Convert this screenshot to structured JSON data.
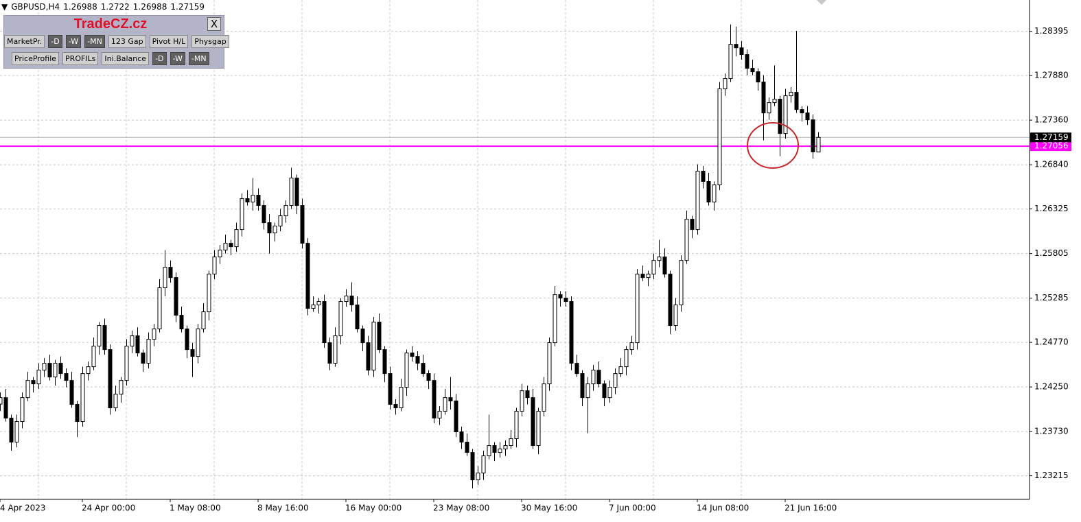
{
  "chart_data": {
    "type": "candlestick",
    "symbol": "GBPUSD,H4",
    "categories": [
      "4 Apr 2023",
      null,
      null,
      null,
      null,
      null,
      null,
      null,
      null,
      null,
      null,
      null,
      null,
      null,
      null,
      "24 Apr 00:00",
      null,
      null,
      null,
      null,
      null,
      null,
      null,
      null,
      null,
      null,
      null,
      null,
      null,
      null,
      null,
      "1 May 08:00",
      null,
      null,
      null,
      null,
      null,
      null,
      null,
      null,
      null,
      null,
      null,
      null,
      null,
      null,
      null,
      "8 May 16:00",
      null,
      null,
      null,
      null,
      null,
      null,
      null,
      null,
      null,
      null,
      null,
      null,
      null,
      null,
      null,
      "16 May 00:00",
      null,
      null,
      null,
      null,
      null,
      null,
      null,
      null,
      null,
      null,
      null,
      null,
      null,
      null,
      null,
      "23 May 08:00",
      null,
      null,
      null,
      null,
      null,
      null,
      null,
      null,
      null,
      null,
      null,
      null,
      null,
      null,
      null,
      "30 May 16:00",
      null,
      null,
      null,
      null,
      null,
      null,
      null,
      null,
      null,
      null,
      null,
      null,
      null,
      null,
      null,
      "7 Jun 00:00",
      null,
      null,
      null,
      null,
      null,
      null,
      null,
      null,
      null,
      null,
      null,
      null,
      null,
      null,
      null,
      "14 Jun 08:00",
      null,
      null,
      null,
      null,
      null,
      null,
      null,
      null,
      null,
      null,
      null,
      null,
      null,
      null,
      null,
      "21 Jun 16:00",
      null,
      null,
      null,
      null,
      null,
      null
    ],
    "open": [
      1.2405,
      1.24126,
      1.23887,
      1.23607,
      1.23847,
      1.24126,
      1.24326,
      1.24286,
      1.24446,
      1.24526,
      1.24366,
      1.24526,
      1.24406,
      1.24326,
      1.24047,
      1.23847,
      1.24406,
      1.24486,
      1.24726,
      1.24966,
      1.24686,
      1.24007,
      1.24166,
      1.24326,
      1.24726,
      1.24846,
      1.24646,
      1.24526,
      1.24806,
      1.24926,
      1.25406,
      1.25645,
      1.25525,
      1.25086,
      1.24926,
      1.24686,
      1.24606,
      1.24926,
      1.25126,
      1.25565,
      1.25765,
      1.25845,
      1.25925,
      1.25885,
      1.26085,
      1.26445,
      1.26405,
      1.26485,
      1.26365,
      1.26165,
      1.26045,
      1.26125,
      1.26245,
      1.26365,
      1.26685,
      1.26365,
      1.25925,
      1.25166,
      1.25206,
      1.25246,
      1.24766,
      1.24526,
      1.24846,
      1.25246,
      1.2531,
      1.25206,
      1.24926,
      1.24766,
      1.24446,
      1.25006,
      1.24686,
      1.24406,
      1.24047,
      1.24007,
      1.24246,
      1.24646,
      1.24606,
      1.24526,
      1.24406,
      1.24326,
      1.23887,
      1.23967,
      1.24126,
      1.24087,
      1.23727,
      1.23607,
      1.23487,
      1.23167,
      1.23247,
      1.23447,
      1.23567,
      1.23487,
      1.23527,
      1.23567,
      1.23647,
      1.23967,
      1.24206,
      1.24126,
      1.23567,
      1.23967,
      1.24286,
      1.24766,
      1.25326,
      1.25286,
      1.25246,
      1.24526,
      1.24406,
      1.24126,
      1.24286,
      1.24446,
      1.24286,
      1.24126,
      1.24246,
      1.24406,
      1.24486,
      1.24686,
      1.24766,
      1.25565,
      1.25525,
      1.25565,
      1.25725,
      1.25765,
      1.25565,
      1.24966,
      1.25206,
      1.25725,
      1.26205,
      1.26085,
      1.26765,
      1.26645,
      1.26405,
      1.26605,
      1.27724,
      1.27844,
      1.28243,
      1.28203,
      1.28124,
      1.27964,
      1.27924,
      1.27804,
      1.27444,
      1.27564,
      1.27604,
      1.27204,
      1.27644,
      1.27684,
      1.27484,
      1.27444,
      1.27364,
      1.26988
    ],
    "high": [
      1.24186,
      1.24226,
      1.23927,
      1.23927,
      1.24186,
      1.24426,
      1.24366,
      1.24526,
      1.24586,
      1.24626,
      1.24566,
      1.24606,
      1.24466,
      1.24426,
      1.24087,
      1.24486,
      1.24546,
      1.24826,
      1.25006,
      1.25046,
      1.24746,
      1.24266,
      1.24366,
      1.24806,
      1.24906,
      1.24946,
      1.24686,
      1.24886,
      1.24986,
      1.25506,
      1.25845,
      1.25725,
      1.25585,
      1.25186,
      1.24966,
      1.24766,
      1.24986,
      1.25226,
      1.25605,
      1.25845,
      1.25905,
      1.26025,
      1.25965,
      1.26165,
      1.26505,
      1.26545,
      1.26685,
      1.26565,
      1.26425,
      1.26265,
      1.26165,
      1.26325,
      1.26425,
      1.26805,
      1.26725,
      1.26445,
      1.25985,
      1.25306,
      1.25286,
      1.25326,
      1.24826,
      1.24946,
      1.25286,
      1.2539,
      1.2547,
      1.25306,
      1.24966,
      1.24846,
      1.25066,
      1.25106,
      1.24726,
      1.24486,
      1.24107,
      1.24346,
      1.24686,
      1.24726,
      1.24666,
      1.24626,
      1.24446,
      1.24406,
      1.24027,
      1.24226,
      1.24366,
      1.24167,
      1.23787,
      1.23707,
      1.23527,
      1.23327,
      1.23507,
      1.23927,
      1.23607,
      1.23607,
      1.23627,
      1.23747,
      1.24007,
      1.24286,
      1.24266,
      1.24226,
      1.24007,
      1.24366,
      1.24826,
      1.25426,
      1.25366,
      1.25366,
      1.25306,
      1.24626,
      1.24446,
      1.24366,
      1.24506,
      1.24546,
      1.24326,
      1.24326,
      1.24466,
      1.24586,
      1.24726,
      1.24846,
      1.25625,
      1.25665,
      1.25605,
      1.25805,
      1.25965,
      1.25865,
      1.25605,
      1.25286,
      1.25785,
      1.26305,
      1.26245,
      1.26845,
      1.26825,
      1.26745,
      1.26645,
      1.27804,
      1.27904,
      1.28475,
      1.2845,
      1.28283,
      1.28184,
      1.28064,
      1.27964,
      1.27884,
      1.27624,
      1.27998,
      1.27644,
      1.27724,
      1.27744,
      1.284,
      1.27524,
      1.27524,
      1.27424,
      1.2722
    ],
    "low": [
      1.2397,
      1.23847,
      1.23507,
      1.23547,
      1.23767,
      1.24086,
      1.24186,
      1.24226,
      1.24366,
      1.24326,
      1.24266,
      1.24346,
      1.24246,
      1.24007,
      1.23667,
      1.23787,
      1.24326,
      1.24446,
      1.24626,
      1.24626,
      1.23927,
      1.23967,
      1.24066,
      1.24266,
      1.24646,
      1.24606,
      1.24426,
      1.24466,
      1.24726,
      1.24886,
      1.25306,
      1.25465,
      1.25006,
      1.24886,
      1.24586,
      1.24366,
      1.24526,
      1.24886,
      1.25026,
      1.25505,
      1.25685,
      1.25805,
      1.25785,
      1.25825,
      1.26005,
      1.26365,
      1.26305,
      1.26305,
      1.26085,
      1.25805,
      1.25945,
      1.26065,
      1.26165,
      1.26325,
      1.26265,
      1.25865,
      1.25086,
      1.25126,
      1.25106,
      1.24706,
      1.24446,
      1.24486,
      1.24746,
      1.25186,
      1.25126,
      1.24886,
      1.24666,
      1.24386,
      1.24366,
      1.24646,
      1.24306,
      1.23987,
      1.23927,
      1.23967,
      1.24146,
      1.24546,
      1.24446,
      1.24366,
      1.24226,
      1.23827,
      1.23807,
      1.23927,
      1.23987,
      1.23667,
      1.23527,
      1.23447,
      1.23067,
      1.23107,
      1.23167,
      1.23407,
      1.23387,
      1.23427,
      1.23447,
      1.23527,
      1.23547,
      1.23907,
      1.24046,
      1.23527,
      1.23467,
      1.23907,
      1.24206,
      1.24726,
      1.25186,
      1.25186,
      1.24446,
      1.24366,
      1.24026,
      1.2371,
      1.24206,
      1.24246,
      1.24026,
      1.24066,
      1.24166,
      1.24366,
      1.24386,
      1.24626,
      1.24686,
      1.25485,
      1.25425,
      1.25505,
      1.25645,
      1.25525,
      1.24866,
      1.24906,
      1.25126,
      1.25685,
      1.25985,
      1.26025,
      1.26565,
      1.26365,
      1.26305,
      1.26545,
      1.27644,
      1.27804,
      1.28103,
      1.28064,
      1.27884,
      1.27884,
      1.27704,
      1.27124,
      1.27364,
      1.27524,
      1.2694,
      1.27144,
      1.27564,
      1.27444,
      1.27344,
      1.27304,
      1.2691,
      1.26988
    ],
    "close": [
      1.24126,
      1.23887,
      1.23607,
      1.23847,
      1.24126,
      1.24326,
      1.24286,
      1.24446,
      1.24526,
      1.24366,
      1.24526,
      1.24406,
      1.24326,
      1.24047,
      1.23847,
      1.24406,
      1.24486,
      1.24726,
      1.24966,
      1.24686,
      1.24007,
      1.24166,
      1.24326,
      1.24726,
      1.24846,
      1.24646,
      1.24526,
      1.24806,
      1.24926,
      1.25406,
      1.25645,
      1.25525,
      1.25086,
      1.24926,
      1.24686,
      1.24606,
      1.24926,
      1.25126,
      1.25565,
      1.25765,
      1.25845,
      1.25925,
      1.25885,
      1.26085,
      1.26445,
      1.26405,
      1.26485,
      1.26365,
      1.26165,
      1.26045,
      1.26125,
      1.26245,
      1.26365,
      1.26685,
      1.26365,
      1.25925,
      1.25166,
      1.25206,
      1.25246,
      1.24766,
      1.24526,
      1.24846,
      1.25246,
      1.2531,
      1.25206,
      1.24926,
      1.24766,
      1.24446,
      1.25006,
      1.24686,
      1.24406,
      1.24047,
      1.24007,
      1.24246,
      1.24646,
      1.24606,
      1.24526,
      1.24406,
      1.24326,
      1.23887,
      1.23967,
      1.24126,
      1.24087,
      1.23727,
      1.23607,
      1.23487,
      1.23167,
      1.23247,
      1.23447,
      1.23567,
      1.23487,
      1.23527,
      1.23567,
      1.23647,
      1.23967,
      1.24206,
      1.24126,
      1.23567,
      1.23967,
      1.24286,
      1.24766,
      1.25326,
      1.25286,
      1.25246,
      1.24526,
      1.24406,
      1.24126,
      1.24286,
      1.24446,
      1.24286,
      1.24126,
      1.24246,
      1.24406,
      1.24486,
      1.24686,
      1.24766,
      1.25565,
      1.25525,
      1.25565,
      1.25725,
      1.25765,
      1.25565,
      1.24966,
      1.25206,
      1.25725,
      1.26205,
      1.26085,
      1.26765,
      1.26645,
      1.26405,
      1.26605,
      1.27724,
      1.27844,
      1.28243,
      1.28203,
      1.28124,
      1.27964,
      1.27924,
      1.27804,
      1.27444,
      1.27564,
      1.27604,
      1.27204,
      1.27644,
      1.27684,
      1.27484,
      1.27444,
      1.27364,
      1.2699,
      1.27159
    ],
    "up_color": "#ffffff",
    "down_color": "#000000",
    "line_color": "#000000",
    "ylim": [
      1.2294,
      1.2876
    ],
    "yticks": [
      1.28395,
      {
        "value": 1.2788,
        "label": "1.27880"
      },
      {
        "value": 1.2736,
        "label": "1.27360"
      },
      {
        "value": 1.2684,
        "label": "1.26840"
      },
      1.26325,
      1.25805,
      1.25285,
      {
        "value": 1.2477,
        "label": "1.24770"
      },
      {
        "value": 1.2425,
        "label": "1.24250"
      },
      {
        "value": 1.2373,
        "label": "1.23730"
      },
      1.23215
    ],
    "grid": true,
    "hline": {
      "value": 1.27056,
      "color": "#ff00ff"
    }
  },
  "panel": {
    "title": "TradeCZ.cz",
    "close": "X",
    "buttons": [
      [
        "MarketPr.",
        "-D",
        "-W",
        "-MN",
        "123 Gap",
        "Pivot H/L",
        "Physgap"
      ],
      [
        "PriceProfile",
        "PROFILs",
        "Ini.Balance",
        "-D",
        "-W",
        "-MN"
      ]
    ]
  }
}
